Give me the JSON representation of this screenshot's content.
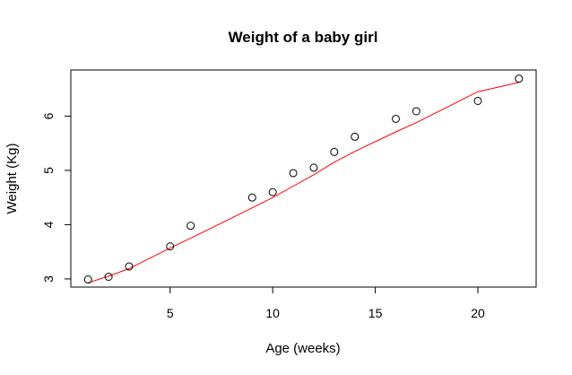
{
  "chart_data": {
    "type": "scatter",
    "title": "Weight of a baby girl",
    "xlabel": "Age (weeks)",
    "ylabel": "Weight (Kg)",
    "xlim": [
      0.16,
      22.84
    ],
    "ylim": [
      2.85,
      6.85
    ],
    "x_ticks": [
      5,
      10,
      15,
      20
    ],
    "y_ticks": [
      3,
      4,
      5,
      6
    ],
    "grid": false,
    "points": {
      "x": [
        1,
        2,
        3,
        5,
        6,
        9,
        10,
        11,
        12,
        13,
        14,
        16,
        17,
        20,
        22
      ],
      "y": [
        2.99,
        3.04,
        3.23,
        3.6,
        3.98,
        4.5,
        4.6,
        4.95,
        5.05,
        5.34,
        5.62,
        5.95,
        6.09,
        6.28,
        6.69
      ]
    },
    "fit_line": {
      "x": [
        1,
        2,
        3,
        5,
        6,
        9,
        10,
        11,
        12,
        13,
        14,
        16,
        17,
        20,
        22
      ],
      "y": [
        2.93,
        3.05,
        3.19,
        3.57,
        3.75,
        4.31,
        4.5,
        4.71,
        4.92,
        5.15,
        5.35,
        5.71,
        5.88,
        6.45,
        6.62
      ]
    },
    "colors": {
      "points": "#000000",
      "fit_line": "#ff0000",
      "axes": "#000000"
    }
  }
}
